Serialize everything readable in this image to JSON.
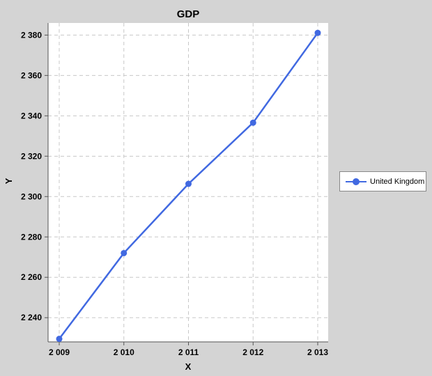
{
  "chart_data": {
    "type": "line",
    "title": "GDP",
    "xlabel": "X",
    "ylabel": "Y",
    "x": [
      2009,
      2010,
      2011,
      2012,
      2013
    ],
    "x_tick_labels": [
      "2 009",
      "2 010",
      "2 011",
      "2 012",
      "2 013"
    ],
    "y_ticks": [
      2240,
      2260,
      2280,
      2300,
      2320,
      2340,
      2360,
      2380
    ],
    "y_tick_labels": [
      "2 240",
      "2 260",
      "2 280",
      "2 300",
      "2 320",
      "2 340",
      "2 360",
      "2 380"
    ],
    "ylim": [
      2228,
      2386
    ],
    "series": [
      {
        "name": "United Kingdom",
        "values": [
          2229.5,
          2272,
          2306.3,
          2336.6,
          2381.1
        ],
        "color": "#4169e1"
      }
    ],
    "grid": true,
    "legend_position": "right"
  }
}
